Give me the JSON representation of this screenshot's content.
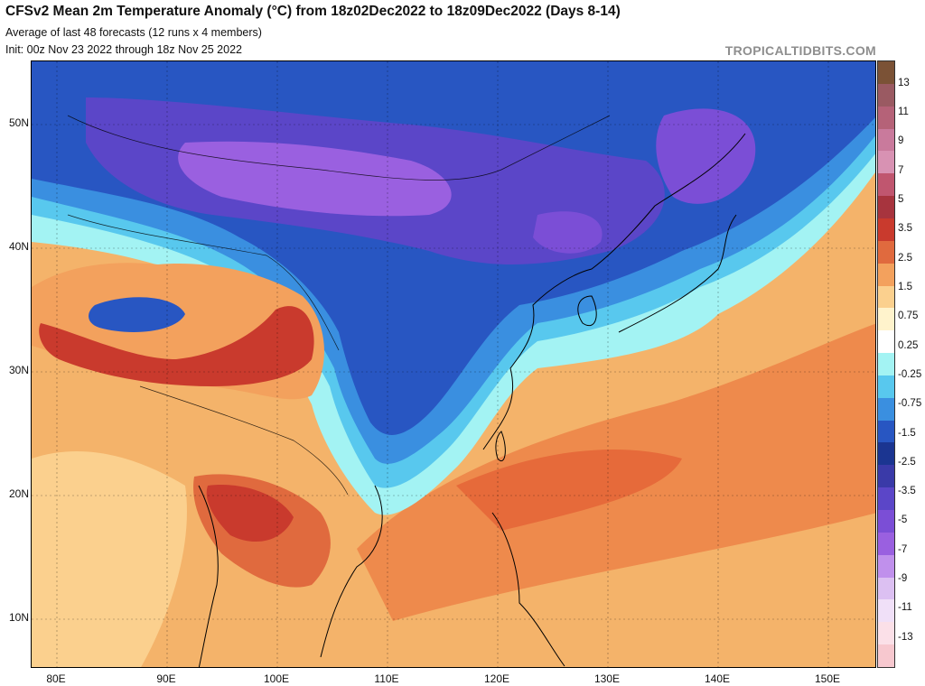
{
  "header": {
    "title": "CFSv2 Mean 2m Temperature Anomaly (°C) from 18z02Dec2022 to 18z09Dec2022 (Days 8-14)",
    "line2": "Average of last 48 forecasts (12 runs x 4 members)",
    "line3": "Init: 00z Nov 23 2022 through 18z Nov 25 2022"
  },
  "brand": "TROPICALTIDBITS.COM",
  "map": {
    "lat_labels": [
      "50N",
      "40N",
      "30N",
      "20N",
      "10N"
    ],
    "lon_labels": [
      "80E",
      "90E",
      "100E",
      "110E",
      "120E",
      "130E",
      "140E",
      "150E"
    ]
  },
  "colorbar": {
    "labels": [
      "13",
      "11",
      "9",
      "7",
      "5",
      "3.5",
      "2.5",
      "1.5",
      "0.75",
      "0.25",
      "-0.25",
      "-0.75",
      "-1.5",
      "-2.5",
      "-3.5",
      "-5",
      "-7",
      "-9",
      "-11",
      "-13"
    ],
    "colors": [
      "#7b5236",
      "#9a5a62",
      "#b56278",
      "#c97a9c",
      "#d892b3",
      "#c0566f",
      "#a7343e",
      "#c93a2d",
      "#e06a3e",
      "#f3a15d",
      "#fbd08e",
      "#fff3cc",
      "#ffffff",
      "#a3f3f3",
      "#58c8ee",
      "#3a8fe0",
      "#2856c2",
      "#1b3591",
      "#3a3aa8",
      "#5b46c8",
      "#7b4ed6",
      "#9a60e0",
      "#c090ec",
      "#dcc0f2",
      "#f0e0f8",
      "#fbe0e8",
      "#f7c8cf"
    ]
  }
}
